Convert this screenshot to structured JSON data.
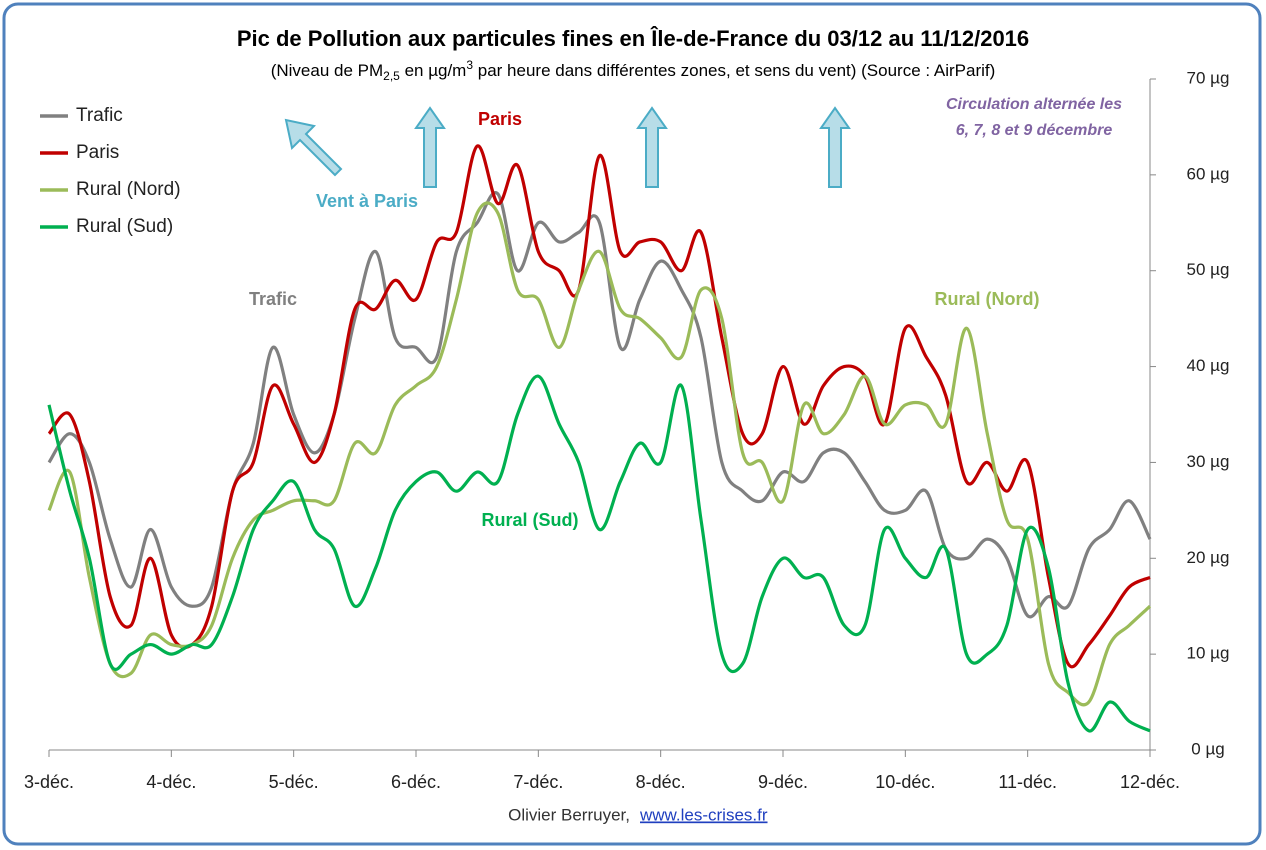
{
  "chart_data": {
    "type": "line",
    "title": "Pic de Pollution aux particules fines en Île-de-France du 03/12 au 11/12/2016",
    "subtitle": [
      "(Niveau de PM",
      "2,5",
      " en µg/m",
      "3",
      " par heure dans différentes zones, et sens du vent) (Source : AirParif)"
    ],
    "annotations": {
      "wind": "Vent à Paris",
      "circulation": [
        "Circulation alternée  les",
        "6, 7, 8 et 9 décembre"
      ]
    },
    "footer": {
      "author": "Olivier Berruyer,",
      "link": "www.les-crises.fr"
    },
    "xlim": [
      0,
      9
    ],
    "xticks": [
      {
        "value": 0,
        "label": "3-déc."
      },
      {
        "value": 1,
        "label": "4-déc."
      },
      {
        "value": 2,
        "label": "5-déc."
      },
      {
        "value": 3,
        "label": "6-déc."
      },
      {
        "value": 4,
        "label": "7-déc."
      },
      {
        "value": 5,
        "label": "8-déc."
      },
      {
        "value": 6,
        "label": "9-déc."
      },
      {
        "value": 7,
        "label": "10-déc."
      },
      {
        "value": 8,
        "label": "11-déc."
      },
      {
        "value": 9,
        "label": "12-déc."
      }
    ],
    "ylim": [
      0,
      70
    ],
    "yticks": [
      {
        "value": 0,
        "label": "0 µg"
      },
      {
        "value": 10,
        "label": "10 µg"
      },
      {
        "value": 20,
        "label": "20 µg"
      },
      {
        "value": 30,
        "label": "30 µg"
      },
      {
        "value": 40,
        "label": "40 µg"
      },
      {
        "value": 50,
        "label": "50 µg"
      },
      {
        "value": 60,
        "label": "60 µg"
      },
      {
        "value": 70,
        "label": "70 µg"
      }
    ],
    "legend": "top-left",
    "x": [
      0,
      0.17,
      0.33,
      0.5,
      0.67,
      0.83,
      1,
      1.17,
      1.33,
      1.5,
      1.67,
      1.83,
      2,
      2.17,
      2.33,
      2.5,
      2.67,
      2.83,
      3,
      3.17,
      3.33,
      3.5,
      3.67,
      3.83,
      4,
      4.17,
      4.33,
      4.5,
      4.67,
      4.83,
      5,
      5.17,
      5.33,
      5.5,
      5.67,
      5.83,
      6,
      6.17,
      6.33,
      6.5,
      6.67,
      6.83,
      7,
      7.17,
      7.33,
      7.5,
      7.67,
      7.83,
      8,
      8.17,
      8.33,
      8.5,
      8.67,
      8.83,
      9
    ],
    "series": [
      {
        "name": "Trafic",
        "color": "#808080",
        "values": [
          30,
          33,
          30,
          22,
          17,
          23,
          17,
          15,
          17,
          27,
          32,
          42,
          35,
          31,
          35,
          45,
          52,
          43,
          42,
          41,
          52,
          55,
          58,
          50,
          55,
          53,
          54,
          55,
          42,
          47,
          51,
          48,
          43,
          30,
          27,
          26,
          29,
          28,
          31,
          31,
          28,
          25,
          25,
          27,
          21,
          20,
          22,
          20,
          14,
          16,
          15,
          21,
          23,
          26,
          22
        ]
      },
      {
        "name": "Paris",
        "color": "#c00000",
        "values": [
          33,
          35,
          28,
          16,
          13,
          20,
          12,
          11,
          15,
          27,
          30,
          38,
          34,
          30,
          35,
          46,
          46,
          49,
          47,
          53,
          54,
          63,
          57,
          61,
          52,
          50,
          48,
          62,
          52,
          53,
          53,
          50,
          54,
          43,
          33,
          33,
          40,
          34,
          38,
          40,
          39,
          34,
          44,
          41,
          37,
          28,
          30,
          27,
          30,
          18,
          9,
          11,
          14,
          17,
          18
        ]
      },
      {
        "name": "Rural (Nord)",
        "color": "#9bbb59",
        "values": [
          25,
          29,
          18,
          9,
          8,
          12,
          11,
          11,
          13,
          20,
          24,
          25,
          26,
          26,
          26,
          32,
          31,
          36,
          38,
          40,
          47,
          56,
          56,
          48,
          47,
          42,
          48,
          52,
          46,
          45,
          43,
          41,
          48,
          45,
          31,
          30,
          26,
          36,
          33,
          35,
          39,
          34,
          36,
          36,
          34,
          44,
          33,
          24,
          22,
          9,
          6,
          5,
          11,
          13,
          15
        ]
      },
      {
        "name": "Rural (Sud)",
        "color": "#00b050",
        "values": [
          36,
          27,
          20,
          9,
          10,
          11,
          10,
          11,
          11,
          16,
          23,
          26,
          28,
          23,
          21,
          15,
          19,
          25,
          28,
          29,
          27,
          29,
          28,
          35,
          39,
          34,
          30,
          23,
          28,
          32,
          30,
          38,
          24,
          10,
          9,
          16,
          20,
          18,
          18,
          13,
          13,
          23,
          20,
          18,
          21,
          10,
          10,
          13,
          23,
          19,
          7,
          2,
          5,
          3,
          2
        ]
      }
    ]
  }
}
